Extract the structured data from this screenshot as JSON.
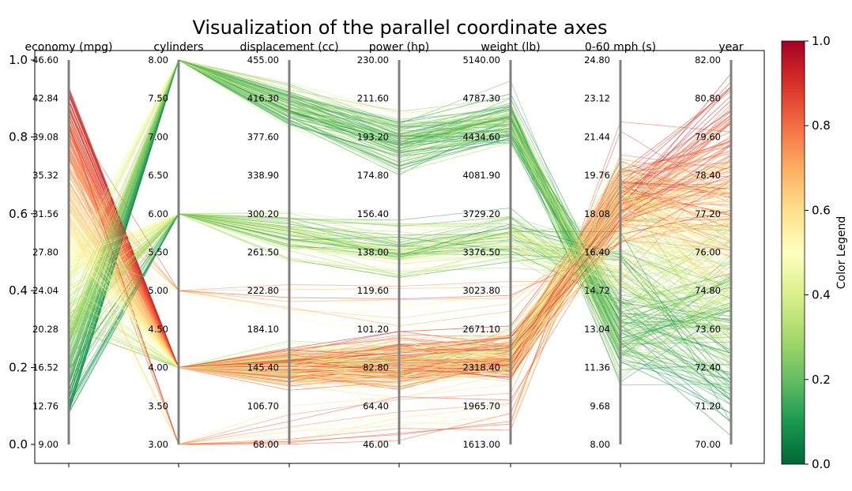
{
  "chart_data": {
    "type": "parallel-coordinates",
    "title": "Visualization of the parallel coordinate axes",
    "y_axis": {
      "ylim": [
        0.0,
        1.0
      ],
      "ticks": [
        "0.0",
        "0.2",
        "0.4",
        "0.6",
        "0.8",
        "1.0"
      ]
    },
    "axes": [
      {
        "name": "economy (mpg)",
        "ticks": [
          "9.00",
          "12.76",
          "16.52",
          "20.28",
          "24.04",
          "27.80",
          "31.56",
          "35.32",
          "39.08",
          "42.84",
          "46.60"
        ]
      },
      {
        "name": "cylinders",
        "ticks": [
          "3.00",
          "3.50",
          "4.00",
          "4.50",
          "5.00",
          "5.50",
          "6.00",
          "6.50",
          "7.00",
          "7.50",
          "8.00"
        ]
      },
      {
        "name": "displacement (cc)",
        "ticks": [
          "68.00",
          "106.70",
          "145.40",
          "184.10",
          "222.80",
          "261.50",
          "300.20",
          "338.90",
          "377.60",
          "416.30",
          "455.00"
        ]
      },
      {
        "name": "power (hp)",
        "ticks": [
          "46.00",
          "64.40",
          "82.80",
          "101.20",
          "119.60",
          "138.00",
          "156.40",
          "174.80",
          "193.20",
          "211.60",
          "230.00"
        ]
      },
      {
        "name": "weight (lb)",
        "ticks": [
          "1613.00",
          "1965.70",
          "2318.40",
          "2671.10",
          "3023.80",
          "3376.50",
          "3729.20",
          "4081.90",
          "4434.60",
          "4787.30",
          "5140.00"
        ]
      },
      {
        "name": "0-60 mph (s)",
        "ticks": [
          "8.00",
          "9.68",
          "11.36",
          "13.04",
          "14.72",
          "16.40",
          "18.08",
          "19.76",
          "21.44",
          "23.12",
          "24.80"
        ]
      },
      {
        "name": "year",
        "ticks": [
          "70.00",
          "71.20",
          "72.40",
          "73.60",
          "74.80",
          "76.00",
          "77.20",
          "78.40",
          "79.60",
          "80.80",
          "82.00"
        ]
      }
    ],
    "colorbar": {
      "label": "Color Legend",
      "range": [
        0.0,
        1.0
      ],
      "ticks": [
        "0.0",
        "0.2",
        "0.4",
        "0.6",
        "0.8",
        "1.0"
      ],
      "colormap": "RdYlGn_r",
      "stops": [
        "#006837",
        "#1a9850",
        "#66bd63",
        "#a6d96a",
        "#d9ef8b",
        "#ffffbf",
        "#fee08b",
        "#fdae61",
        "#f46d43",
        "#d73027",
        "#a50026"
      ]
    },
    "series_note_hidden": "",
    "sample_count": 390,
    "line_alpha": 0.55
  }
}
